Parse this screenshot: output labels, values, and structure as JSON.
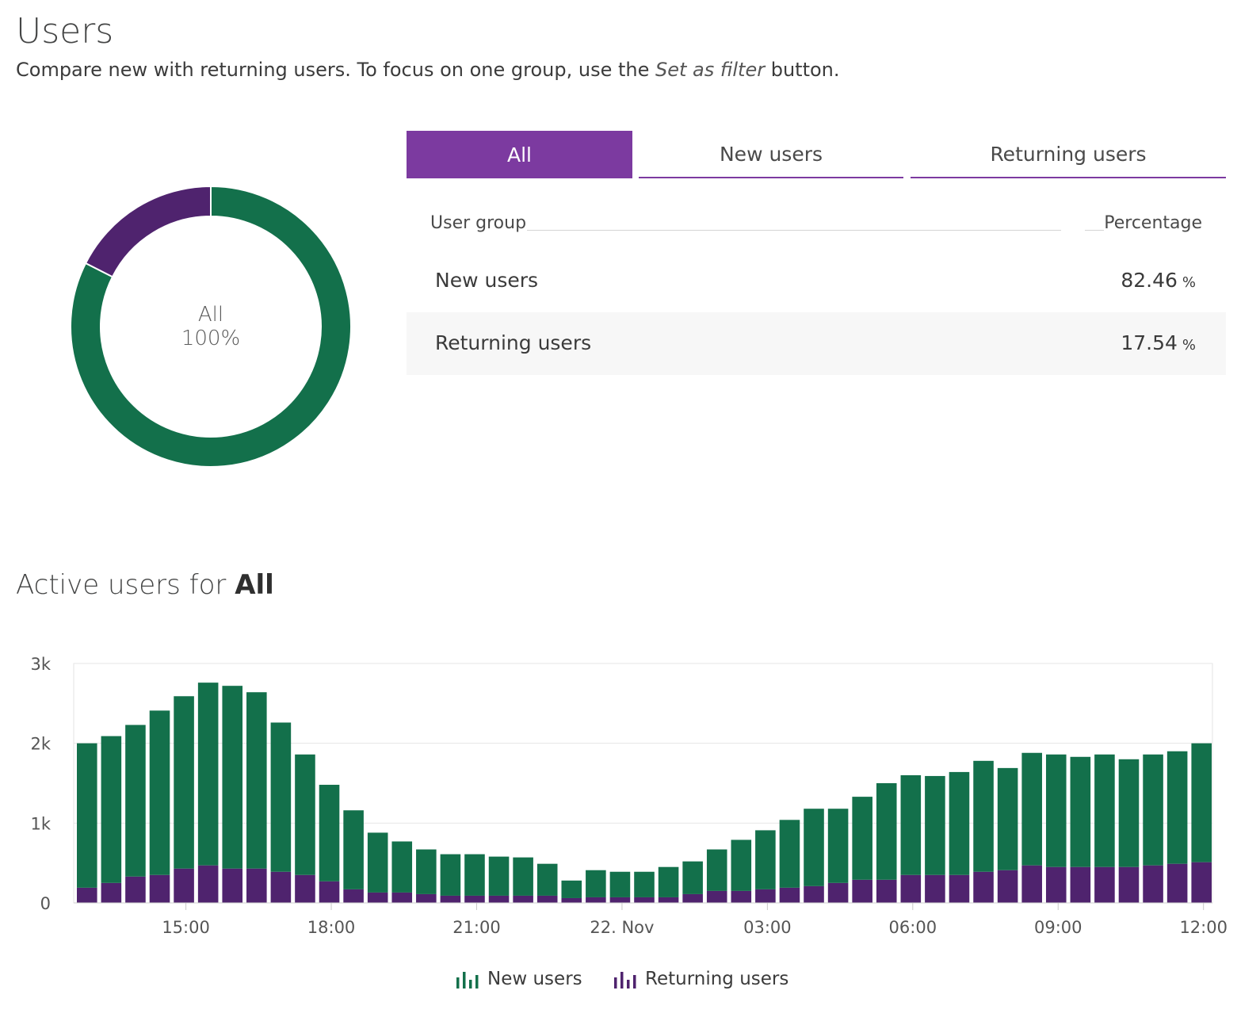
{
  "header": {
    "title": "Users",
    "subtitle_before": "Compare new with returning users. To focus on one group, use the ",
    "subtitle_em": "Set as filter",
    "subtitle_after": " button."
  },
  "donut": {
    "center_label": "All",
    "center_value": "100%",
    "segments": [
      {
        "name": "New users",
        "percent": 82.46,
        "color": "#13704b"
      },
      {
        "name": "Returning users",
        "percent": 17.54,
        "color": "#4f236e"
      }
    ]
  },
  "tabs": [
    {
      "label": "All",
      "active": true
    },
    {
      "label": "New users",
      "active": false
    },
    {
      "label": "Returning users",
      "active": false
    }
  ],
  "table": {
    "col_group": "User group",
    "col_percentage": "Percentage",
    "rows": [
      {
        "group": "New users",
        "value": "82.46",
        "unit": "%"
      },
      {
        "group": "Returning users",
        "value": "17.54",
        "unit": "%"
      }
    ]
  },
  "section": {
    "title_prefix": "Active users for ",
    "title_bold": "All"
  },
  "colors": {
    "accent": "#7c3aa0",
    "new_users": "#13704b",
    "returning_users": "#4f236e"
  },
  "chart_data": {
    "type": "bar",
    "stacked": true,
    "ylim": [
      0,
      3000
    ],
    "y_ticks": [
      {
        "value": 0,
        "label": "0"
      },
      {
        "value": 1000,
        "label": "1k"
      },
      {
        "value": 2000,
        "label": "2k"
      },
      {
        "value": 3000,
        "label": "3k"
      }
    ],
    "x_ticks": [
      {
        "index": 4.5,
        "label": "15:00"
      },
      {
        "index": 10.5,
        "label": "18:00"
      },
      {
        "index": 16.5,
        "label": "21:00"
      },
      {
        "index": 22.5,
        "label": "22. Nov"
      },
      {
        "index": 28.5,
        "label": "03:00"
      },
      {
        "index": 34.5,
        "label": "06:00"
      },
      {
        "index": 40.5,
        "label": "09:00"
      },
      {
        "index": 46.5,
        "label": "12:00"
      }
    ],
    "grid": true,
    "legend_position": "bottom-center",
    "series": [
      {
        "name": "Returning users",
        "color": "#4f236e",
        "values": [
          190,
          250,
          330,
          350,
          430,
          470,
          430,
          430,
          390,
          350,
          270,
          170,
          130,
          130,
          110,
          90,
          90,
          90,
          90,
          90,
          60,
          70,
          70,
          70,
          70,
          110,
          150,
          150,
          170,
          190,
          210,
          250,
          290,
          290,
          350,
          350,
          350,
          390,
          410,
          470,
          450,
          450,
          450,
          450,
          470,
          490,
          510
        ]
      },
      {
        "name": "New users",
        "color": "#13704b",
        "values": [
          1810,
          1840,
          1900,
          2060,
          2160,
          2290,
          2290,
          2210,
          1870,
          1510,
          1210,
          990,
          750,
          640,
          560,
          520,
          520,
          490,
          480,
          400,
          220,
          340,
          320,
          320,
          380,
          410,
          520,
          640,
          740,
          850,
          970,
          930,
          1040,
          1210,
          1250,
          1240,
          1290,
          1390,
          1280,
          1410,
          1410,
          1380,
          1410,
          1350,
          1390,
          1410,
          1490
        ]
      }
    ],
    "totals": [
      2000,
      2090,
      2230,
      2410,
      2590,
      2760,
      2720,
      2640,
      2260,
      1860,
      1480,
      1160,
      880,
      770,
      670,
      610,
      610,
      580,
      570,
      490,
      280,
      410,
      390,
      390,
      450,
      520,
      670,
      790,
      910,
      1040,
      1180,
      1180,
      1330,
      1500,
      1600,
      1590,
      1640,
      1780,
      1690,
      1880,
      1860,
      1830,
      1860,
      1800,
      1860,
      1900,
      2000
    ]
  },
  "legend": [
    {
      "label": "New users",
      "color": "#13704b",
      "icon": "bar-chart-icon"
    },
    {
      "label": "Returning users",
      "color": "#4f236e",
      "icon": "bar-chart-icon"
    }
  ]
}
